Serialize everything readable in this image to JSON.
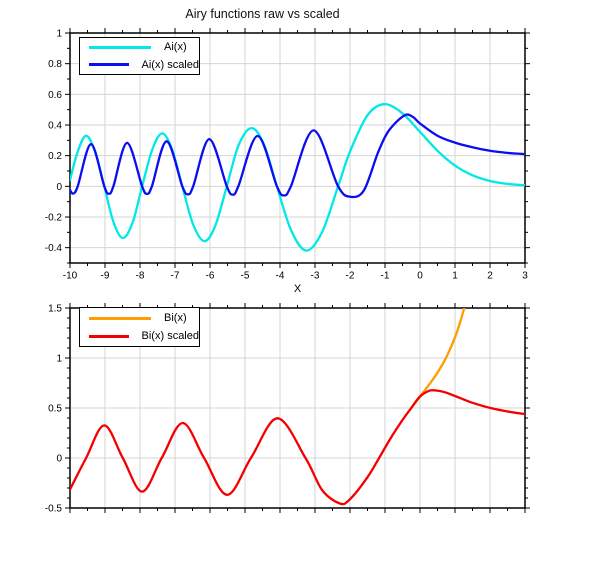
{
  "title": "Airy functions raw vs scaled",
  "colors": {
    "ai_raw": "#00E8E8",
    "ai_scaled": "#0D0DF2",
    "bi_raw": "#FF9C00",
    "bi_scaled": "#F40000",
    "grid": "#D4D4D4",
    "frame": "#000000",
    "text": "#000000"
  },
  "chart_data": [
    {
      "type": "line",
      "title": "",
      "xlabel": "X",
      "ylabel": "",
      "xlim": [
        -10,
        3
      ],
      "ylim": [
        -0.5,
        1
      ],
      "grid": true,
      "legend_position": "top-left",
      "x_major": [
        -10,
        -9,
        -8,
        -7,
        -6,
        -5,
        -4,
        -3,
        -2,
        -1,
        0,
        1,
        2,
        3
      ],
      "x_labels": [
        "-10",
        "-9",
        "-8",
        "-7",
        "-6",
        "-5",
        "-4",
        "-3",
        "-2",
        "-1",
        "0",
        "1",
        "2",
        "3"
      ],
      "x_minor_step": 0.5,
      "y_major": [
        1,
        0.8,
        0.6,
        0.4,
        0.2,
        0,
        -0.2,
        -0.4
      ],
      "y_labels": [
        "1",
        "0.8",
        "0.6",
        "0.4",
        "0.2",
        "0",
        "-0.2",
        "-0.4"
      ],
      "y_minor_step": 0.1,
      "series": [
        {
          "name": "Ai(x)",
          "color": "#00E8E8",
          "points": [
            [
              -10,
              0.04
            ],
            [
              -9.78,
              0.226
            ],
            [
              -9.54,
              0.33
            ],
            [
              -9.29,
              0.229
            ],
            [
              -9.02,
              0
            ],
            [
              -8.76,
              -0.232
            ],
            [
              -8.49,
              -0.337
            ],
            [
              -8.21,
              -0.236
            ],
            [
              -7.94,
              0
            ],
            [
              -7.65,
              0.24
            ],
            [
              -7.37,
              0.345
            ],
            [
              -7.09,
              0.245
            ],
            [
              -6.79,
              0
            ],
            [
              -6.48,
              -0.25
            ],
            [
              -6.16,
              -0.358
            ],
            [
              -5.85,
              -0.257
            ],
            [
              -5.52,
              0
            ],
            [
              -5.19,
              0.264
            ],
            [
              -4.82,
              0.38
            ],
            [
              -4.46,
              0.275
            ],
            [
              -4.09,
              0
            ],
            [
              -3.68,
              -0.288
            ],
            [
              -3.25,
              -0.419
            ],
            [
              -2.8,
              -0.3
            ],
            [
              -2.34,
              0
            ],
            [
              -2.0,
              0.227
            ],
            [
              -1.5,
              0.464
            ],
            [
              -1.02,
              0.536
            ],
            [
              -0.5,
              0.476
            ],
            [
              0,
              0.355
            ],
            [
              0.5,
              0.232
            ],
            [
              1,
              0.135
            ],
            [
              1.5,
              0.072
            ],
            [
              2,
              0.035
            ],
            [
              2.5,
              0.016
            ],
            [
              3,
              0.007
            ]
          ]
        },
        {
          "name": "Ai(x) scaled",
          "color": "#0D0DF2",
          "points": [
            [
              -10,
              -0.024
            ],
            [
              -9.91,
              -0.047
            ],
            [
              -9.78,
              0
            ],
            [
              -9.4,
              0.275
            ],
            [
              -9.02,
              0
            ],
            [
              -8.89,
              -0.048
            ],
            [
              -8.76,
              0
            ],
            [
              -8.37,
              0.283
            ],
            [
              -7.94,
              0
            ],
            [
              -7.8,
              -0.049
            ],
            [
              -7.66,
              0
            ],
            [
              -7.24,
              0.294
            ],
            [
              -6.79,
              0
            ],
            [
              -6.63,
              -0.052
            ],
            [
              -6.48,
              0
            ],
            [
              -6.02,
              0.308
            ],
            [
              -5.52,
              0
            ],
            [
              -5.35,
              -0.054
            ],
            [
              -5.19,
              0
            ],
            [
              -4.64,
              0.328
            ],
            [
              -4.09,
              0
            ],
            [
              -3.89,
              -0.059
            ],
            [
              -3.69,
              0
            ],
            [
              -3.04,
              0.365
            ],
            [
              -2.34,
              0
            ],
            [
              -1.98,
              -0.068
            ],
            [
              -1.6,
              -0.025
            ],
            [
              -1.2,
              0.22
            ],
            [
              -0.9,
              0.36
            ],
            [
              -0.45,
              0.462
            ],
            [
              -0.2,
              0.452
            ],
            [
              0,
              0.41
            ],
            [
              0.5,
              0.33
            ],
            [
              1,
              0.285
            ],
            [
              1.5,
              0.255
            ],
            [
              2,
              0.232
            ],
            [
              2.5,
              0.218
            ],
            [
              3,
              0.21
            ]
          ]
        }
      ]
    },
    {
      "type": "line",
      "title": "",
      "xlabel": "",
      "ylabel": "",
      "xlim": [
        -10,
        3
      ],
      "ylim": [
        -0.5,
        1.5
      ],
      "grid": true,
      "legend_position": "top-left",
      "x_major": [
        -10,
        -9,
        -8,
        -7,
        -6,
        -5,
        -4,
        -3,
        -2,
        -1,
        0,
        1,
        2,
        3
      ],
      "x_labels": [],
      "x_minor_step": 0.5,
      "y_major": [
        1.5,
        1,
        0.5,
        0,
        -0.5
      ],
      "y_labels": [
        "1.5",
        "1",
        "0.5",
        "0",
        "-0.5"
      ],
      "y_minor_step": 0.1,
      "series": [
        {
          "name": "Bi(x)",
          "color": "#FF9C00",
          "points": [
            [
              -0.25,
              0.501
            ],
            [
              0,
              0.615
            ],
            [
              0.25,
              0.729
            ],
            [
              0.5,
              0.854
            ],
            [
              0.75,
              1.007
            ],
            [
              1.0,
              1.207
            ],
            [
              1.1,
              1.307
            ],
            [
              1.2,
              1.421
            ],
            [
              1.3,
              1.552
            ],
            [
              1.38,
              1.72
            ]
          ]
        },
        {
          "name": "Bi(x) scaled",
          "color": "#F40000",
          "points": [
            [
              -10,
              -0.314
            ],
            [
              -9.54,
              0
            ],
            [
              -9.02,
              0.326
            ],
            [
              -8.49,
              0
            ],
            [
              -7.94,
              -0.336
            ],
            [
              -7.38,
              0
            ],
            [
              -6.78,
              0.35
            ],
            [
              -6.17,
              0
            ],
            [
              -5.51,
              -0.368
            ],
            [
              -4.83,
              0
            ],
            [
              -4.07,
              0.397
            ],
            [
              -3.27,
              0
            ],
            [
              -2.8,
              -0.319
            ],
            [
              -2.29,
              -0.455
            ],
            [
              -2.0,
              -0.412
            ],
            [
              -1.5,
              -0.192
            ],
            [
              -1.17,
              0
            ],
            [
              -0.8,
              0.22
            ],
            [
              -0.5,
              0.38
            ],
            [
              -0.25,
              0.501
            ],
            [
              0,
              0.615
            ],
            [
              0.25,
              0.671
            ],
            [
              0.4,
              0.677
            ],
            [
              0.6,
              0.668
            ],
            [
              0.75,
              0.653
            ],
            [
              1,
              0.62
            ],
            [
              1.25,
              0.585
            ],
            [
              1.5,
              0.552
            ],
            [
              2,
              0.501
            ],
            [
              2.5,
              0.465
            ],
            [
              3,
              0.439
            ]
          ]
        }
      ]
    }
  ]
}
